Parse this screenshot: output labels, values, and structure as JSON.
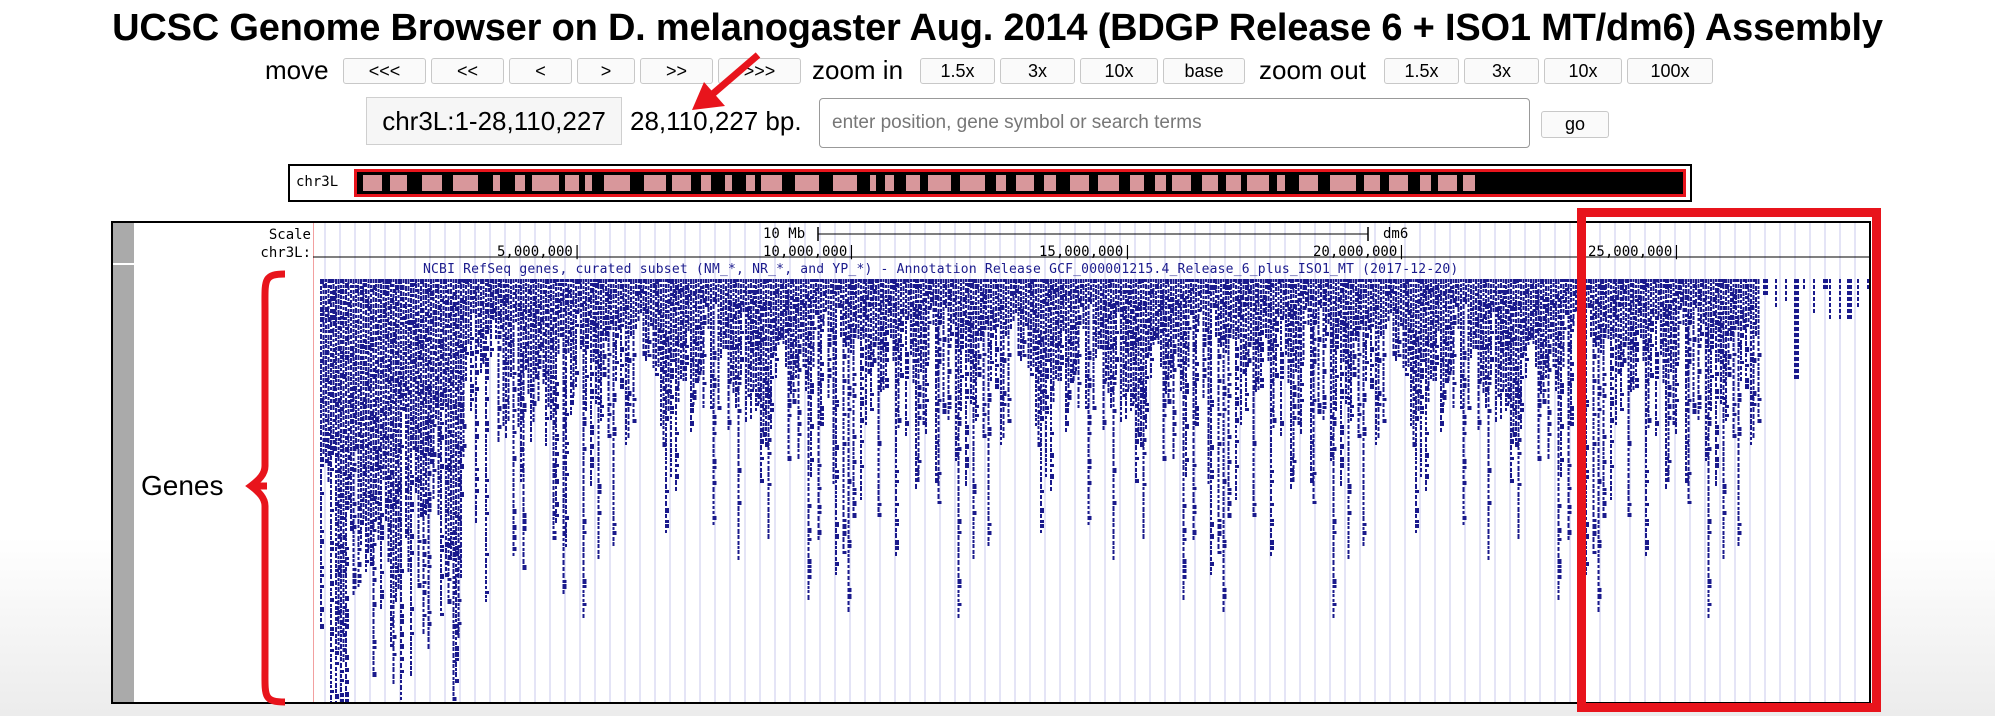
{
  "title": "UCSC Genome Browser on D. melanogaster Aug. 2014 (BDGP Release 6 + ISO1 MT/dm6) Assembly",
  "nav": {
    "move_label": "move",
    "move_buttons": [
      "<<<",
      "<<",
      "<",
      ">",
      ">>",
      ">>>"
    ],
    "zoom_in_label": "zoom in",
    "zoom_in_buttons": [
      "1.5x",
      "3x",
      "10x",
      "base"
    ],
    "zoom_out_label": "zoom out",
    "zoom_out_buttons": [
      "1.5x",
      "3x",
      "10x",
      "100x"
    ]
  },
  "position": {
    "value": "chr3L:1-28,110,227",
    "size": "28,110,227 bp.",
    "search_placeholder": "enter position, gene symbol or search terms",
    "go_label": "go"
  },
  "ideogram": {
    "chrom_label": "chr3L"
  },
  "track": {
    "scale_label": "Scale",
    "chrom_label": "chr3L:",
    "scale_bar_label": "10 Mb",
    "assembly_label": "dm6",
    "ticks": [
      "5,000,000|",
      "10,000,000|",
      "15,000,000|",
      "20,000,000|",
      "25,000,000|"
    ],
    "gene_track_title": "NCBI RefSeq genes, curated subset (NM_*, NR_*, and YP_*) - Annotation Release GCF_000001215.4_Release_6_plus_ISO1_MT (2017-12-20)",
    "gene_color": "#1a1a8c"
  },
  "annotations": {
    "genes_label": "Genes",
    "highlight_color": "#e8141c"
  }
}
